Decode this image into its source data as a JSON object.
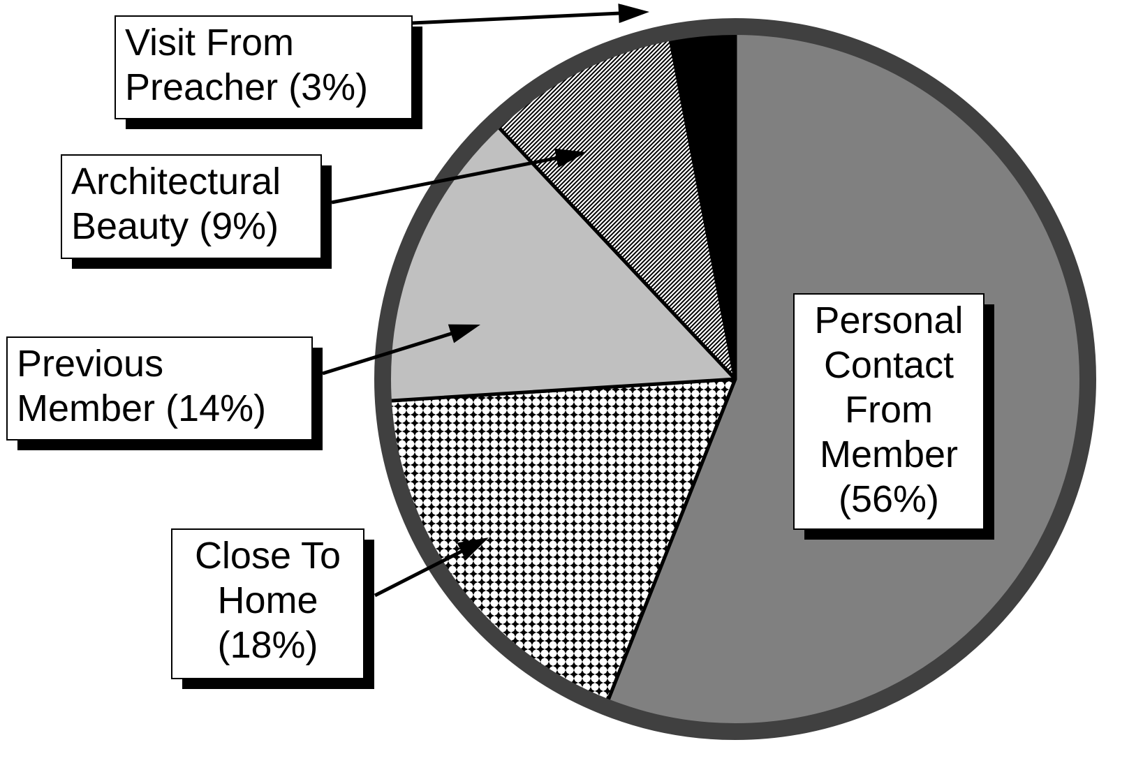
{
  "chart_data": {
    "type": "pie",
    "categories": [
      "Personal Contact From Member",
      "Close To Home",
      "Previous Member",
      "Architectural Beauty",
      "Visit From Preacher"
    ],
    "values": [
      56,
      18,
      14,
      9,
      3
    ],
    "value_labels": [
      "(56%)",
      "(18%)",
      "(14%)",
      "(9%)",
      "(3%)"
    ],
    "fills": [
      "#808080",
      "checker",
      "#c0c0c0",
      "hatch",
      "#000000"
    ]
  }
}
